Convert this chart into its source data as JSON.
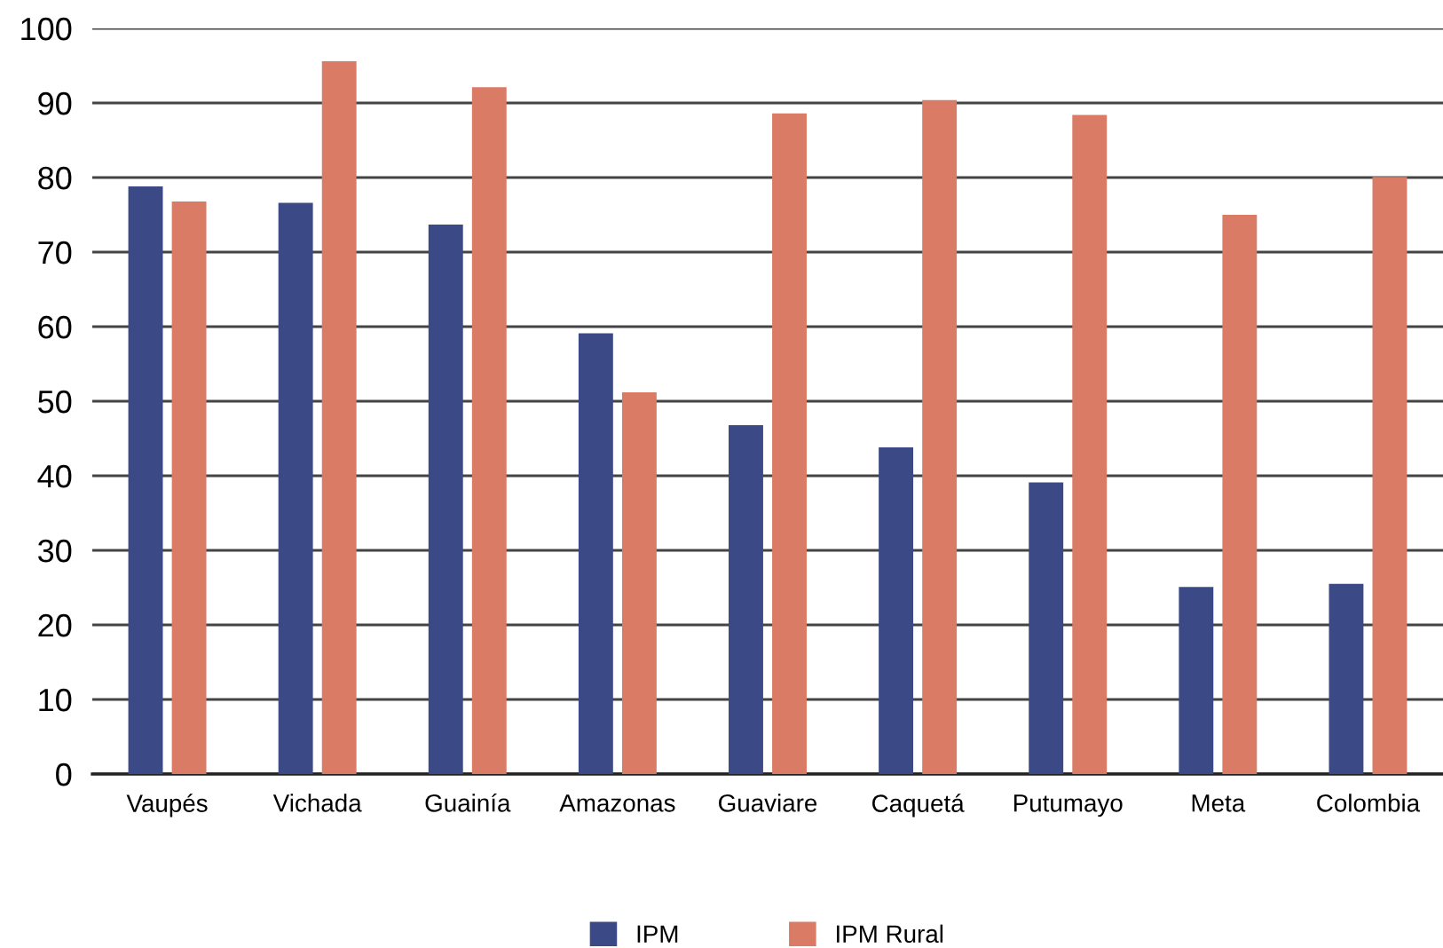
{
  "chart_data": {
    "type": "bar",
    "categories": [
      "Vaupés",
      "Vichada",
      "Guainía",
      "Amazonas",
      "Guaviare",
      "Caquetá",
      "Putumayo",
      "Meta",
      "Colombia"
    ],
    "series": [
      {
        "name": "IPM",
        "color": "#3b4a86",
        "values": [
          78.8,
          76.6,
          73.7,
          59.1,
          46.8,
          43.8,
          39.1,
          25.1,
          25.5
        ]
      },
      {
        "name": "IPM Rural",
        "color": "#da7b66",
        "values": [
          76.8,
          95.6,
          92.1,
          51.2,
          88.6,
          90.4,
          88.4,
          75.0,
          80.1
        ]
      }
    ],
    "ylim": [
      0,
      100
    ],
    "yticks": [
      0,
      10,
      20,
      30,
      40,
      50,
      60,
      70,
      80,
      90,
      100
    ],
    "grid": "y",
    "legend": "bottom"
  }
}
